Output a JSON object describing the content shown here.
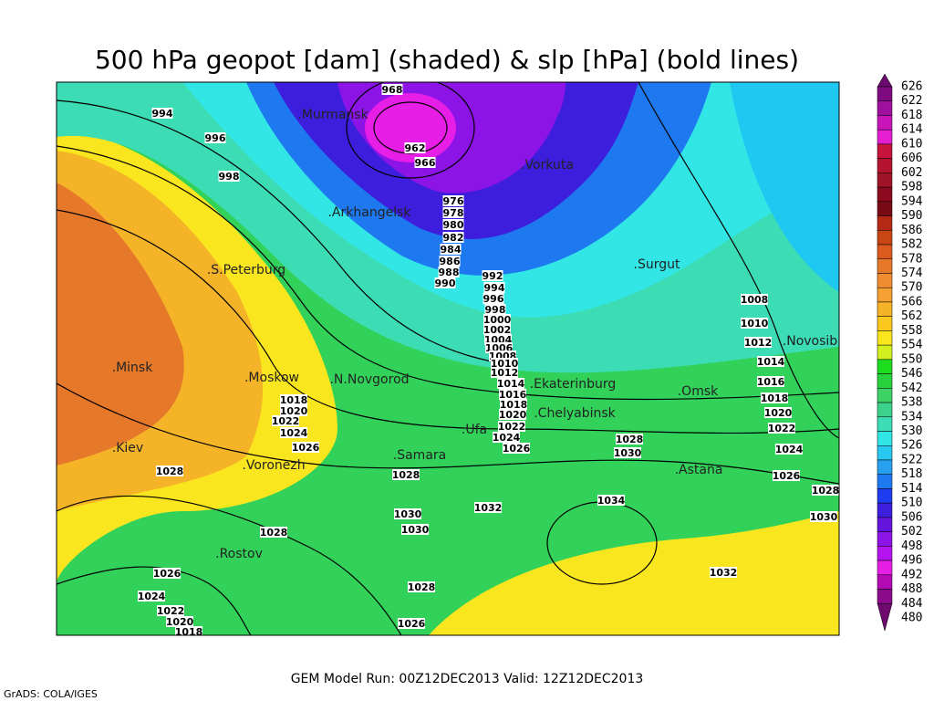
{
  "title": "500 hPa geopot [dam] (shaded) & slp [hPa] (bold lines)",
  "footer": "GEM Model Run: 00Z12DEC2013 Valid: 12Z12DEC2013",
  "credit": "GrADS: COLA/IGES",
  "colorbar": {
    "levels": [
      626,
      622,
      618,
      614,
      610,
      606,
      602,
      598,
      594,
      590,
      586,
      582,
      578,
      574,
      570,
      566,
      562,
      558,
      554,
      550,
      546,
      542,
      538,
      534,
      530,
      526,
      522,
      518,
      514,
      510,
      506,
      502,
      498,
      496,
      492,
      488,
      484,
      480
    ],
    "colors": [
      "#6a0a6e",
      "#7d0a80",
      "#a0109e",
      "#c814b8",
      "#e61ed2",
      "#c8143c",
      "#b4142d",
      "#a01428",
      "#8c0a1e",
      "#780a14",
      "#b42814",
      "#c84614",
      "#dc5a1e",
      "#e6782a",
      "#f08c32",
      "#f5a032",
      "#f5b428",
      "#fac81e",
      "#fae61e",
      "#d2f01e",
      "#1edc1e",
      "#28d23c",
      "#3cd264",
      "#3cd28c",
      "#3cdcb4",
      "#32e6e6",
      "#28c8f0",
      "#28a0f0",
      "#1e78f0",
      "#1e3cf0",
      "#3c1edc",
      "#6414dc",
      "#8c14e6",
      "#b414f0",
      "#e61ee6",
      "#b40ab4",
      "#8c0a8c",
      "#6e0a6e"
    ]
  },
  "cities": [
    ".Murmansk",
    ".Vorkuta",
    ".Arkhangelsk",
    ".S.Peterburg",
    ".Surgut",
    ".Minsk",
    ".Moskow",
    ".N.Novgorod",
    ".Ekaterinburg",
    ".Chelyabinsk",
    ".Omsk",
    ".Ufa",
    ".Samara",
    ".Kiev",
    ".Voronezh",
    ".Astana",
    ".Novosib",
    ".Rostov"
  ],
  "isobar_labels": [
    994,
    996,
    998,
    968,
    962,
    966,
    976,
    978,
    980,
    982,
    984,
    986,
    988,
    990,
    992,
    994,
    996,
    998,
    1000,
    1002,
    1004,
    1006,
    1008,
    1010,
    1012,
    1014,
    1016,
    1018,
    1020,
    1022,
    1024,
    1026,
    1018,
    1020,
    1022,
    1024,
    1026,
    1028,
    1028,
    1030,
    1030,
    1032,
    1034,
    1028,
    1030,
    1008,
    1010,
    1012,
    1014,
    1016,
    1018,
    1020,
    1022,
    1024,
    1026,
    1028,
    1030,
    1032,
    1028,
    1026,
    1024,
    1022,
    1020,
    1018,
    1028,
    1026
  ]
}
